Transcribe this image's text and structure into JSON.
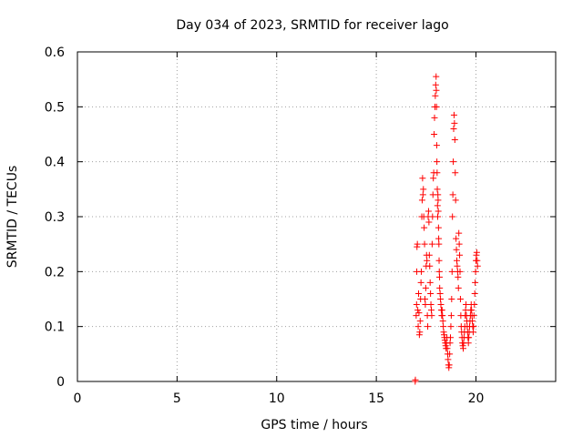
{
  "chart_data": {
    "type": "scatter",
    "title": "Day 034 of 2023, SRMTID for receiver lago",
    "xlabel": "GPS time / hours",
    "ylabel": "SRMTID / TECUs",
    "xlim": [
      0,
      24
    ],
    "ylim": [
      0,
      0.6
    ],
    "xticks": [
      0,
      5,
      10,
      15,
      20
    ],
    "xtick_labels": [
      "0",
      "5",
      "10",
      "15",
      "20"
    ],
    "yticks": [
      0,
      0.1,
      0.2,
      0.3,
      0.4,
      0.5,
      0.6
    ],
    "ytick_labels": [
      "0",
      "0.1",
      "0.2",
      "0.3",
      "0.4",
      "0.5",
      "0.6"
    ],
    "grid": true,
    "marker": "plus",
    "series": [
      {
        "name": "SRMTID",
        "color": "#ff0000",
        "points": [
          [
            16.95,
            0.0
          ],
          [
            16.96,
            0.003
          ],
          [
            17.0,
            0.12
          ],
          [
            17.02,
            0.14
          ],
          [
            17.03,
            0.2
          ],
          [
            17.04,
            0.245
          ],
          [
            17.06,
            0.25
          ],
          [
            17.08,
            0.13
          ],
          [
            17.1,
            0.1
          ],
          [
            17.12,
            0.16
          ],
          [
            17.14,
            0.125
          ],
          [
            17.16,
            0.085
          ],
          [
            17.18,
            0.09
          ],
          [
            17.2,
            0.11
          ],
          [
            17.22,
            0.15
          ],
          [
            17.24,
            0.18
          ],
          [
            17.26,
            0.2
          ],
          [
            17.28,
            0.3
          ],
          [
            17.3,
            0.33
          ],
          [
            17.32,
            0.37
          ],
          [
            17.34,
            0.34
          ],
          [
            17.36,
            0.35
          ],
          [
            17.38,
            0.3
          ],
          [
            17.4,
            0.28
          ],
          [
            17.42,
            0.25
          ],
          [
            17.44,
            0.15
          ],
          [
            17.46,
            0.14
          ],
          [
            17.48,
            0.17
          ],
          [
            17.5,
            0.21
          ],
          [
            17.52,
            0.23
          ],
          [
            17.54,
            0.22
          ],
          [
            17.56,
            0.12
          ],
          [
            17.58,
            0.1
          ],
          [
            17.6,
            0.3
          ],
          [
            17.62,
            0.31
          ],
          [
            17.64,
            0.29
          ],
          [
            17.66,
            0.23
          ],
          [
            17.68,
            0.21
          ],
          [
            17.7,
            0.18
          ],
          [
            17.72,
            0.16
          ],
          [
            17.74,
            0.14
          ],
          [
            17.76,
            0.13
          ],
          [
            17.78,
            0.12
          ],
          [
            17.8,
            0.25
          ],
          [
            17.82,
            0.3
          ],
          [
            17.84,
            0.34
          ],
          [
            17.86,
            0.37
          ],
          [
            17.88,
            0.38
          ],
          [
            17.9,
            0.45
          ],
          [
            17.92,
            0.48
          ],
          [
            17.94,
            0.5
          ],
          [
            17.96,
            0.52
          ],
          [
            17.98,
            0.54
          ],
          [
            18.0,
            0.555
          ],
          [
            18.01,
            0.53
          ],
          [
            18.02,
            0.5
          ],
          [
            18.03,
            0.43
          ],
          [
            18.04,
            0.4
          ],
          [
            18.05,
            0.38
          ],
          [
            18.06,
            0.35
          ],
          [
            18.07,
            0.32
          ],
          [
            18.08,
            0.3
          ],
          [
            18.09,
            0.34
          ],
          [
            18.1,
            0.33
          ],
          [
            18.11,
            0.31
          ],
          [
            18.12,
            0.28
          ],
          [
            18.13,
            0.26
          ],
          [
            18.14,
            0.25
          ],
          [
            18.15,
            0.22
          ],
          [
            18.16,
            0.2
          ],
          [
            18.17,
            0.19
          ],
          [
            18.18,
            0.17
          ],
          [
            18.2,
            0.16
          ],
          [
            18.22,
            0.15
          ],
          [
            18.24,
            0.14
          ],
          [
            18.26,
            0.13
          ],
          [
            18.28,
            0.12
          ],
          [
            18.3,
            0.13
          ],
          [
            18.32,
            0.12
          ],
          [
            18.34,
            0.11
          ],
          [
            18.36,
            0.1
          ],
          [
            18.38,
            0.09
          ],
          [
            18.4,
            0.085
          ],
          [
            18.42,
            0.08
          ],
          [
            18.44,
            0.075
          ],
          [
            18.46,
            0.07
          ],
          [
            18.48,
            0.065
          ],
          [
            18.5,
            0.06
          ],
          [
            18.52,
            0.07
          ],
          [
            18.54,
            0.08
          ],
          [
            18.56,
            0.06
          ],
          [
            18.58,
            0.05
          ],
          [
            18.6,
            0.04
          ],
          [
            18.62,
            0.03
          ],
          [
            18.64,
            0.025
          ],
          [
            18.66,
            0.03
          ],
          [
            18.68,
            0.05
          ],
          [
            18.7,
            0.07
          ],
          [
            18.72,
            0.08
          ],
          [
            18.74,
            0.1
          ],
          [
            18.76,
            0.12
          ],
          [
            18.78,
            0.15
          ],
          [
            18.8,
            0.2
          ],
          [
            18.82,
            0.3
          ],
          [
            18.84,
            0.34
          ],
          [
            18.86,
            0.4
          ],
          [
            18.88,
            0.46
          ],
          [
            18.9,
            0.485
          ],
          [
            18.92,
            0.47
          ],
          [
            18.94,
            0.44
          ],
          [
            18.96,
            0.38
          ],
          [
            18.98,
            0.33
          ],
          [
            19.0,
            0.26
          ],
          [
            19.02,
            0.24
          ],
          [
            19.04,
            0.22
          ],
          [
            19.06,
            0.21
          ],
          [
            19.08,
            0.2
          ],
          [
            19.1,
            0.19
          ],
          [
            19.12,
            0.17
          ],
          [
            19.14,
            0.27
          ],
          [
            19.16,
            0.25
          ],
          [
            19.18,
            0.23
          ],
          [
            19.2,
            0.2
          ],
          [
            19.22,
            0.15
          ],
          [
            19.24,
            0.12
          ],
          [
            19.26,
            0.1
          ],
          [
            19.28,
            0.09
          ],
          [
            19.3,
            0.08
          ],
          [
            19.32,
            0.07
          ],
          [
            19.34,
            0.065
          ],
          [
            19.36,
            0.06
          ],
          [
            19.38,
            0.07
          ],
          [
            19.4,
            0.08
          ],
          [
            19.42,
            0.09
          ],
          [
            19.44,
            0.1
          ],
          [
            19.46,
            0.12
          ],
          [
            19.48,
            0.13
          ],
          [
            19.5,
            0.14
          ],
          [
            19.52,
            0.12
          ],
          [
            19.54,
            0.11
          ],
          [
            19.56,
            0.1
          ],
          [
            19.58,
            0.09
          ],
          [
            19.6,
            0.08
          ],
          [
            19.62,
            0.07
          ],
          [
            19.64,
            0.08
          ],
          [
            19.66,
            0.09
          ],
          [
            19.68,
            0.1
          ],
          [
            19.7,
            0.11
          ],
          [
            19.72,
            0.12
          ],
          [
            19.74,
            0.13
          ],
          [
            19.76,
            0.14
          ],
          [
            19.78,
            0.13
          ],
          [
            19.8,
            0.12
          ],
          [
            19.82,
            0.11
          ],
          [
            19.84,
            0.1
          ],
          [
            19.86,
            0.09
          ],
          [
            19.88,
            0.1
          ],
          [
            19.9,
            0.12
          ],
          [
            19.92,
            0.14
          ],
          [
            19.94,
            0.16
          ],
          [
            19.96,
            0.18
          ],
          [
            19.98,
            0.2
          ],
          [
            20.0,
            0.22
          ],
          [
            20.02,
            0.23
          ],
          [
            20.04,
            0.235
          ],
          [
            20.06,
            0.22
          ],
          [
            20.08,
            0.21
          ]
        ]
      }
    ]
  }
}
